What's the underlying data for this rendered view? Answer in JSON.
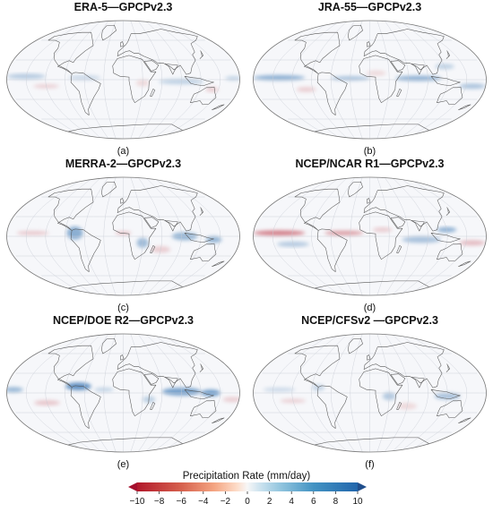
{
  "panels": [
    {
      "title": "ERA-5—GPCPv2.3",
      "caption": "(a)"
    },
    {
      "title": "JRA-55—GPCPv2.3",
      "caption": "(b)"
    },
    {
      "title": "MERRA-2—GPCPv2.3",
      "caption": "(c)"
    },
    {
      "title": "NCEP/NCAR R1—GPCPv2.3",
      "caption": "(d)"
    },
    {
      "title": "NCEP/DOE R2—GPCPv2.3",
      "caption": "(e)"
    },
    {
      "title": "NCEP/CFSv2 —GPCPv2.3",
      "caption": "(f)"
    }
  ],
  "colorbar": {
    "title": "Precipitation Rate (mm/day)",
    "ticks": [
      "−10",
      "−8",
      "−6",
      "−4",
      "−2",
      "0",
      "2",
      "4",
      "6",
      "8",
      "10"
    ],
    "range": [
      -10,
      10
    ],
    "colors": {
      "negative": "#b2182b",
      "neutral": "#f7f7f7",
      "positive": "#2166ac"
    }
  }
}
